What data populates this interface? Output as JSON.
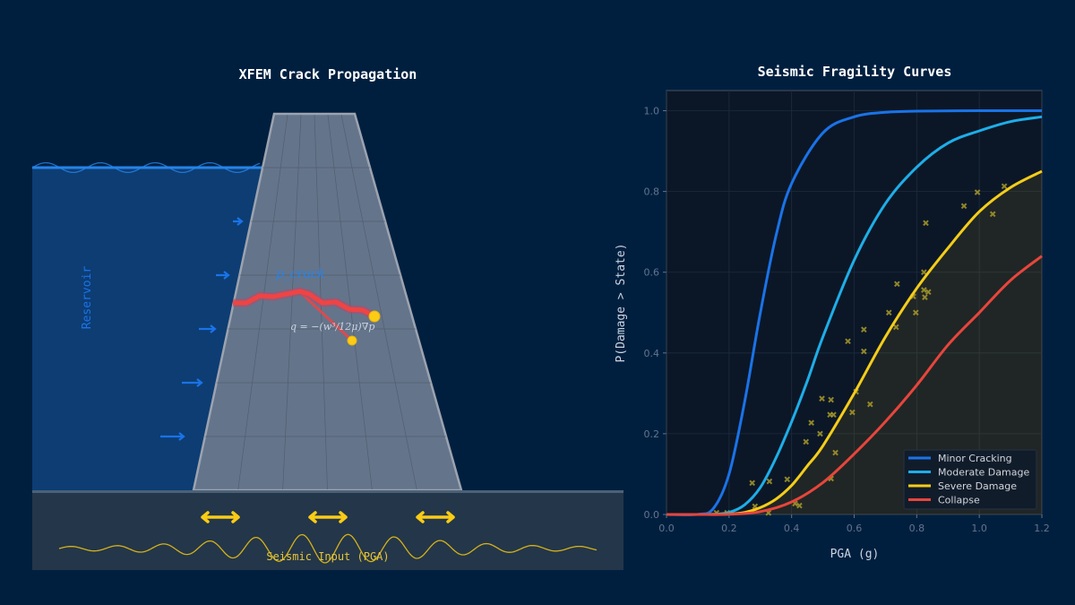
{
  "diagram": {
    "title": "XFEM Crack Propagation",
    "reservoir_label": "Reservoir",
    "crack_pressure_label": "p_crack",
    "flow_equation": "q = −(w³/12μ)∇p",
    "seismic_label": "Seismic Input (PGA)",
    "colors": {
      "water": "#0d3d73",
      "dam": "#64748b",
      "crack": "#ef4444",
      "crack_tip": "#facc15",
      "seismic": "#facc15"
    }
  },
  "chart_data": {
    "type": "line",
    "title": "Seismic Fragility Curves",
    "xlabel": "PGA (g)",
    "ylabel": "P(Damage > State)",
    "xlim": [
      0,
      1.2
    ],
    "ylim": [
      0,
      1.05
    ],
    "xticks": [
      "0.0",
      "0.2",
      "0.4",
      "0.6",
      "0.8",
      "1.0",
      "1.2"
    ],
    "yticks": [
      "0.0",
      "0.2",
      "0.4",
      "0.6",
      "0.8",
      "1.0"
    ],
    "grid": true,
    "legend_position": "bottom-right",
    "series": [
      {
        "name": "Minor Cracking",
        "color": "#1a73e8",
        "x": [
          0,
          0.1,
          0.15,
          0.2,
          0.25,
          0.3,
          0.35,
          0.4,
          0.5,
          0.6,
          0.7,
          0.8,
          1.0,
          1.2
        ],
        "y": [
          0,
          0.0003,
          0.015,
          0.1,
          0.28,
          0.5,
          0.69,
          0.82,
          0.945,
          0.985,
          0.996,
          0.999,
          1.0,
          1.0
        ]
      },
      {
        "name": "Moderate Damage",
        "color": "#1eaee8",
        "x": [
          0,
          0.1,
          0.15,
          0.2,
          0.25,
          0.3,
          0.35,
          0.4,
          0.45,
          0.5,
          0.6,
          0.7,
          0.8,
          0.9,
          1.0,
          1.1,
          1.2
        ],
        "y": [
          0,
          0,
          0.0005,
          0.005,
          0.024,
          0.067,
          0.14,
          0.23,
          0.33,
          0.44,
          0.63,
          0.77,
          0.86,
          0.92,
          0.95,
          0.973,
          0.985
        ]
      },
      {
        "name": "Severe Damage",
        "color": "#f5cd19",
        "fill": true,
        "x": [
          0,
          0.1,
          0.2,
          0.25,
          0.3,
          0.35,
          0.4,
          0.45,
          0.5,
          0.6,
          0.7,
          0.8,
          0.9,
          1.0,
          1.1,
          1.2
        ],
        "y": [
          0,
          0,
          0.001,
          0.005,
          0.017,
          0.038,
          0.072,
          0.12,
          0.17,
          0.3,
          0.44,
          0.56,
          0.66,
          0.75,
          0.81,
          0.85
        ]
      },
      {
        "name": "Collapse",
        "color": "#e8453c",
        "x": [
          0,
          0.1,
          0.2,
          0.3,
          0.4,
          0.5,
          0.6,
          0.7,
          0.8,
          0.9,
          1.0,
          1.1,
          1.2
        ],
        "y": [
          0,
          0,
          0.0005,
          0.007,
          0.031,
          0.079,
          0.15,
          0.23,
          0.32,
          0.42,
          0.5,
          0.58,
          0.64
        ]
      }
    ],
    "observations": {
      "marker": "x",
      "color": "#a89a2a",
      "points": [
        [
          0.274,
          0.078
        ],
        [
          0.329,
          0.082
        ],
        [
          0.386,
          0.087
        ],
        [
          0.411,
          0.027
        ],
        [
          0.425,
          0.022
        ],
        [
          0.16,
          0.004
        ],
        [
          0.194,
          0.004
        ],
        [
          0.283,
          0.02
        ],
        [
          0.326,
          0.004
        ],
        [
          0.446,
          0.18
        ],
        [
          0.463,
          0.227
        ],
        [
          0.491,
          0.2
        ],
        [
          0.497,
          0.287
        ],
        [
          0.526,
          0.284
        ],
        [
          0.523,
          0.247
        ],
        [
          0.534,
          0.247
        ],
        [
          0.54,
          0.153
        ],
        [
          0.526,
          0.089
        ],
        [
          0.58,
          0.429
        ],
        [
          0.594,
          0.253
        ],
        [
          0.606,
          0.304
        ],
        [
          0.631,
          0.458
        ],
        [
          0.631,
          0.404
        ],
        [
          0.651,
          0.273
        ],
        [
          0.711,
          0.5
        ],
        [
          0.734,
          0.464
        ],
        [
          0.737,
          0.571
        ],
        [
          0.789,
          0.54
        ],
        [
          0.797,
          0.5
        ],
        [
          0.823,
          0.6
        ],
        [
          0.823,
          0.556
        ],
        [
          0.826,
          0.538
        ],
        [
          0.837,
          0.551
        ],
        [
          0.829,
          0.722
        ],
        [
          0.951,
          0.764
        ],
        [
          0.994,
          0.798
        ],
        [
          1.043,
          0.744
        ],
        [
          1.08,
          0.813
        ]
      ]
    }
  }
}
